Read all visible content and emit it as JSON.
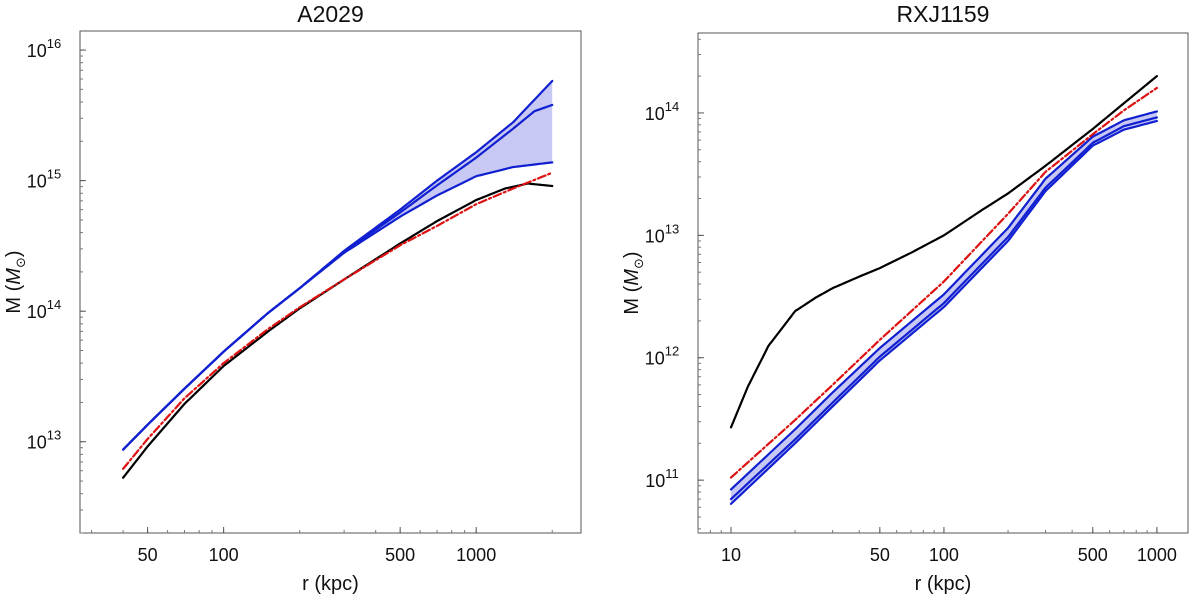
{
  "chart_data": [
    {
      "type": "line",
      "title": "A2029",
      "xlabel": "r (kpc)",
      "ylabel": "M",
      "ylabel_unit": "M",
      "ylabel_unit_sub": "⊙",
      "x_scale": "log",
      "y_scale": "log",
      "xlim": [
        27,
        2600
      ],
      "ylim": [
        2000000000000.0,
        1.4e+16
      ],
      "x_ticks": [
        {
          "value": 50,
          "label": "50"
        },
        {
          "value": 100,
          "label": "100"
        },
        {
          "value": 500,
          "label": "500"
        },
        {
          "value": 1000,
          "label": "1000"
        }
      ],
      "y_ticks": [
        {
          "value": 10000000000000.0,
          "base": "10",
          "exp": "13"
        },
        {
          "value": 100000000000000.0,
          "base": "10",
          "exp": "14"
        },
        {
          "value": 1000000000000000.0,
          "base": "10",
          "exp": "15"
        },
        {
          "value": 1e+16,
          "base": "10",
          "exp": "16"
        }
      ],
      "band": {
        "color": "#c8c8f5",
        "x": [
          40,
          50,
          70,
          100,
          150,
          200,
          300,
          500,
          700,
          1000,
          1400,
          2000
        ],
        "lower": [
          8700000000000.0,
          13500000000000.0,
          25500000000000.0,
          49000000000000.0,
          97000000000000.0,
          150000000000000.0,
          280000000000000.0,
          530000000000000.0,
          770000000000000.0,
          1080000000000000.0,
          1270000000000000.0,
          1380000000000000.0
        ],
        "upper": [
          8700000000000.0,
          13500000000000.0,
          25500000000000.0,
          49000000000000.0,
          97000000000000.0,
          150000000000000.0,
          290000000000000.0,
          600000000000000.0,
          1000000000000000.0,
          1650000000000000.0,
          2800000000000000.0,
          5800000000000000.0
        ]
      },
      "series": [
        {
          "style": "solid",
          "color": "#1020d0",
          "width": 2.2,
          "x": [
            40,
            50,
            70,
            100,
            150,
            200,
            300,
            500,
            700,
            1000,
            1400,
            2000
          ],
          "values": [
            8700000000000.0,
            13500000000000.0,
            25500000000000.0,
            49000000000000.0,
            97000000000000.0,
            150000000000000.0,
            280000000000000.0,
            530000000000000.0,
            770000000000000.0,
            1080000000000000.0,
            1270000000000000.0,
            1380000000000000.0
          ]
        },
        {
          "style": "solid",
          "color": "#1020d0",
          "width": 2.2,
          "x": [
            40,
            50,
            70,
            100,
            150,
            200,
            300,
            500,
            700,
            1000,
            1400,
            1700,
            2000
          ],
          "values": [
            8700000000000.0,
            13500000000000.0,
            25500000000000.0,
            49000000000000.0,
            97000000000000.0,
            150000000000000.0,
            285000000000000.0,
            570000000000000.0,
            920000000000000.0,
            1500000000000000.0,
            2500000000000000.0,
            3400000000000000.0,
            3800000000000000.0
          ]
        },
        {
          "style": "solid",
          "color": "#1020d0",
          "width": 2.2,
          "x": [
            40,
            50,
            70,
            100,
            150,
            200,
            300,
            500,
            700,
            1000,
            1400,
            2000
          ],
          "values": [
            8700000000000.0,
            13500000000000.0,
            25500000000000.0,
            49000000000000.0,
            97000000000000.0,
            150000000000000.0,
            290000000000000.0,
            600000000000000.0,
            1000000000000000.0,
            1650000000000000.0,
            2800000000000000.0,
            5800000000000000.0
          ]
        },
        {
          "style": "solid",
          "color": "#000000",
          "width": 2.2,
          "x": [
            40,
            50,
            70,
            100,
            150,
            200,
            300,
            500,
            700,
            1000,
            1300,
            1600,
            2000
          ],
          "values": [
            5300000000000.0,
            9200000000000.0,
            19500000000000.0,
            38000000000000.0,
            70000000000000.0,
            105000000000000.0,
            175000000000000.0,
            330000000000000.0,
            490000000000000.0,
            710000000000000.0,
            870000000000000.0,
            950000000000000.0,
            910000000000000.0
          ]
        },
        {
          "style": "dashdot",
          "color": "#dd1111",
          "width": 2.2,
          "x": [
            40,
            50,
            70,
            100,
            150,
            200,
            300,
            500,
            700,
            1000,
            1400,
            2000
          ],
          "values": [
            6200000000000.0,
            10500000000000.0,
            21500000000000.0,
            40000000000000.0,
            73000000000000.0,
            107000000000000.0,
            175000000000000.0,
            320000000000000.0,
            450000000000000.0,
            660000000000000.0,
            870000000000000.0,
            1150000000000000.0
          ]
        }
      ]
    },
    {
      "type": "line",
      "title": "RXJ1159",
      "xlabel": "r (kpc)",
      "ylabel": "M",
      "ylabel_unit": "M",
      "ylabel_unit_sub": "⊙",
      "x_scale": "log",
      "y_scale": "log",
      "xlim": [
        7,
        1400
      ],
      "ylim": [
        37000000000.0,
        450000000000000.0
      ],
      "x_ticks": [
        {
          "value": 10,
          "label": "10"
        },
        {
          "value": 50,
          "label": "50"
        },
        {
          "value": 100,
          "label": "100"
        },
        {
          "value": 500,
          "label": "500"
        },
        {
          "value": 1000,
          "label": "1000"
        }
      ],
      "y_ticks": [
        {
          "value": 100000000000.0,
          "base": "10",
          "exp": "11"
        },
        {
          "value": 1000000000000.0,
          "base": "10",
          "exp": "12"
        },
        {
          "value": 10000000000000.0,
          "base": "10",
          "exp": "13"
        },
        {
          "value": 100000000000000.0,
          "base": "10",
          "exp": "14"
        }
      ],
      "band": {
        "color": "#c8c8f5",
        "x": [
          10,
          20,
          30,
          50,
          100,
          200,
          300,
          500,
          700,
          1000
        ],
        "lower": [
          64000000000.0,
          200000000000.0,
          400000000000.0,
          950000000000.0,
          2600000000000.0,
          9000000000000.0,
          23000000000000.0,
          54000000000000.0,
          73000000000000.0,
          86000000000000.0
        ],
        "upper": [
          84000000000.0,
          260000000000.0,
          520000000000.0,
          1200000000000.0,
          3300000000000.0,
          11500000000000.0,
          29000000000000.0,
          64000000000000.0,
          87000000000000.0,
          103000000000000.0
        ]
      },
      "series": [
        {
          "style": "solid",
          "color": "#1020d0",
          "width": 2.2,
          "x": [
            10,
            20,
            30,
            50,
            100,
            200,
            300,
            500,
            700,
            1000
          ],
          "values": [
            64000000000.0,
            200000000000.0,
            400000000000.0,
            950000000000.0,
            2600000000000.0,
            9000000000000.0,
            23000000000000.0,
            54000000000000.0,
            73000000000000.0,
            86000000000000.0
          ]
        },
        {
          "style": "solid",
          "color": "#1020d0",
          "width": 2.2,
          "x": [
            10,
            20,
            30,
            50,
            100,
            200,
            300,
            500,
            700,
            1000
          ],
          "values": [
            70000000000.0,
            215000000000.0,
            430000000000.0,
            1020000000000.0,
            2800000000000.0,
            9700000000000.0,
            24500000000000.0,
            57000000000000.0,
            78000000000000.0,
            92000000000000.0
          ]
        },
        {
          "style": "solid",
          "color": "#1020d0",
          "width": 2.2,
          "x": [
            10,
            20,
            30,
            50,
            100,
            200,
            300,
            500,
            700,
            1000
          ],
          "values": [
            84000000000.0,
            260000000000.0,
            520000000000.0,
            1200000000000.0,
            3300000000000.0,
            11500000000000.0,
            29000000000000.0,
            64000000000000.0,
            87000000000000.0,
            103000000000000.0
          ]
        },
        {
          "style": "solid",
          "color": "#000000",
          "width": 2.2,
          "x": [
            10,
            12,
            15,
            20,
            25,
            30,
            40,
            50,
            70,
            100,
            150,
            200,
            300,
            500,
            700,
            1000
          ],
          "values": [
            270000000000.0,
            580000000000.0,
            1250000000000.0,
            2400000000000.0,
            3100000000000.0,
            3700000000000.0,
            4600000000000.0,
            5400000000000.0,
            7200000000000.0,
            10000000000000.0,
            16000000000000.0,
            22000000000000.0,
            37000000000000.0,
            74000000000000.0,
            120000000000000.0,
            200000000000000.0
          ]
        },
        {
          "style": "dashdot",
          "color": "#dd1111",
          "width": 2.2,
          "x": [
            10,
            20,
            30,
            50,
            100,
            200,
            300,
            500,
            700,
            1000
          ],
          "values": [
            105000000000.0,
            310000000000.0,
            600000000000.0,
            1400000000000.0,
            4200000000000.0,
            15000000000000.0,
            33000000000000.0,
            67000000000000.0,
            105000000000000.0,
            160000000000000.0
          ]
        }
      ]
    }
  ]
}
